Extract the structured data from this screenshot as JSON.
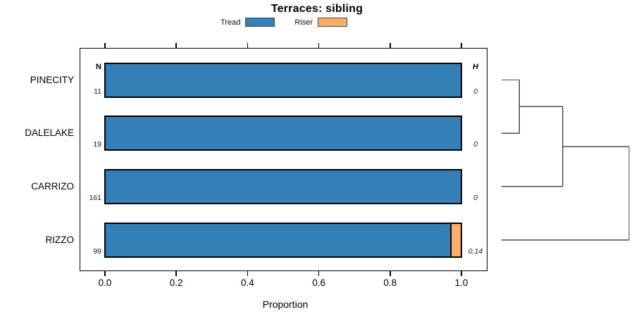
{
  "title": "Terraces: sibling",
  "legend": {
    "items": [
      {
        "label": "Tread",
        "color": "#3380B8"
      },
      {
        "label": "Riser",
        "color": "#FBAE65"
      }
    ]
  },
  "chart_data": {
    "type": "bar",
    "orientation": "horizontal",
    "stacked": true,
    "title": "Terraces: sibling",
    "xlabel": "Proportion",
    "xlim": [
      -0.07,
      1.07
    ],
    "grid": false,
    "legend_position": "top",
    "xticks": [
      0,
      0.2,
      0.4,
      0.6,
      0.8,
      1.0
    ],
    "xtick_labels": [
      "0.0",
      "0.2",
      "0.4",
      "0.6",
      "0.8",
      "1.0"
    ],
    "categories": [
      "PINECITY",
      "DALELAKE",
      "CARRIZO",
      "RIZZO"
    ],
    "n_header": "N",
    "n_values": [
      "11",
      "19",
      "161",
      "99"
    ],
    "h_header": "H",
    "h_values": [
      "0",
      "0",
      "0",
      "0.14"
    ],
    "series": [
      {
        "name": "Tread",
        "color": "#3380B8",
        "values": [
          1.0,
          1.0,
          1.0,
          0.97
        ]
      },
      {
        "name": "Riser",
        "color": "#FBAE65",
        "values": [
          0,
          0,
          0,
          0.03
        ]
      }
    ],
    "dendrogram": {
      "side": "right",
      "leaves": [
        "PINECITY",
        "DALELAKE",
        "CARRIZO",
        "RIZZO"
      ],
      "merges": [
        {
          "children": [
            -1,
            -2
          ],
          "height": 0.14
        },
        {
          "children": [
            1,
            -3
          ],
          "height": 0.48
        },
        {
          "children": [
            2,
            -4
          ],
          "height": 1.0
        }
      ]
    }
  }
}
